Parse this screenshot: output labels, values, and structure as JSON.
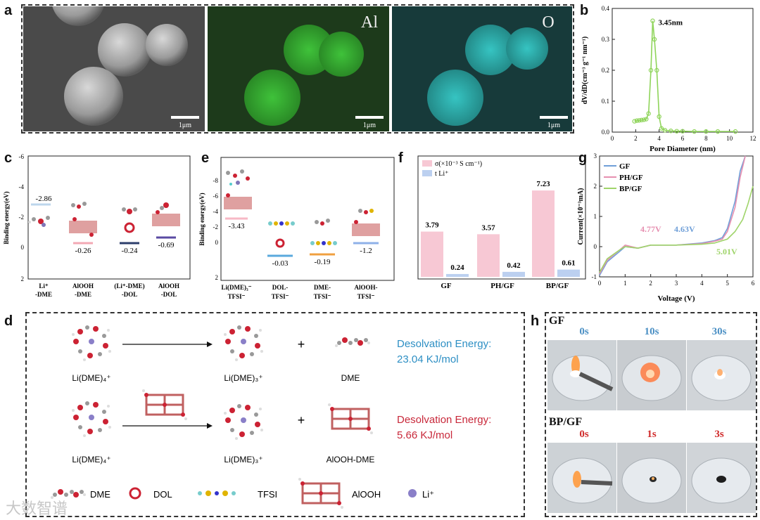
{
  "panels": {
    "a": {
      "label": "a",
      "map1": "Al",
      "map2": "O",
      "scalebar": "1μm",
      "map1_color": "#31a62c",
      "map2_color": "#2aa8a6"
    },
    "b": {
      "label": "b",
      "ylabel": "dV/dD(cm⁻³ g⁻¹ nm⁻¹)",
      "xlabel": "Pore Diameter (nm)",
      "annotation": "3.45nm",
      "line_color": "#8fd45a"
    },
    "c": {
      "label": "c",
      "ylabel": "Binding energy(eV)",
      "ticks": [
        "-6",
        "-4",
        "-2",
        "0",
        "2"
      ],
      "values": [
        "-2.86",
        "-0.26",
        "-0.24",
        "-0.69"
      ],
      "categories": [
        [
          "Li⁺",
          "-DME"
        ],
        [
          "AlOOH",
          "-DME"
        ],
        [
          "(Li⁺-DME)",
          "-DOL"
        ],
        [
          "AlOOH",
          "-DOL"
        ]
      ],
      "level_colors": [
        "#bcd6ec",
        "#f3a8b4",
        "#2c3e6b",
        "#5a4aa2"
      ]
    },
    "e": {
      "label": "e",
      "ylabel": "Binding energy(eV)",
      "ticks": [
        "-8",
        "-6",
        "-4",
        "-2",
        "0",
        "2"
      ],
      "values": [
        "-3.43",
        "-0.03",
        "-0.19",
        "-1.2"
      ],
      "categories": [
        [
          "Li(DME)₃⁻",
          "TFSI⁻"
        ],
        [
          "DOL-",
          "TFSI⁻"
        ],
        [
          "DME-",
          "TFSI⁻"
        ],
        [
          "AlOOH-",
          "TFSI⁻"
        ]
      ],
      "level_colors": [
        "#f7b8c6",
        "#5aa9dd",
        "#f0a040",
        "#8fb0e8"
      ]
    },
    "f": {
      "label": "f",
      "legend": [
        "σ(×10⁻³ S cm⁻¹)",
        "t Li⁺"
      ],
      "colors": [
        "#f7c8d4",
        "#bcd0f0"
      ]
    },
    "g": {
      "label": "g",
      "ylabel": "Current(×10⁻³mA)",
      "xlabel": "Voltage (V)",
      "series_colors": [
        "#6f9fd8",
        "#e68fb0",
        "#9fd46a"
      ],
      "annotations": [
        "4.63V",
        "4.77V",
        "5.01V"
      ]
    },
    "d": {
      "label": "d",
      "row1": {
        "left": "Li(DME)₄⁺",
        "mid": "Li(DME)₃⁺",
        "plus": "+",
        "right": "DME",
        "energy_title": "Desolvation Energy:",
        "energy_value": "23.04 KJ/mol",
        "color": "#2d8fc4"
      },
      "row2": {
        "left": "Li(DME)₄⁺",
        "mid": "Li(DME)₃⁺",
        "plus": "+",
        "right": "AlOOH-DME",
        "energy_title": "Desolvation Energy:",
        "energy_value": "5.66 KJ/mol",
        "color": "#c8283a"
      },
      "legend": [
        "DME",
        "DOL",
        "TFSI",
        "AlOOH",
        "Li⁺"
      ]
    },
    "h": {
      "label": "h",
      "group1": "GF",
      "times1": [
        "0s",
        "10s",
        "30s"
      ],
      "group2": "BP/GF",
      "times2": [
        "0s",
        "1s",
        "3s"
      ],
      "time_color1": "#4a8fc4",
      "time_color2": "#d02a2a"
    }
  },
  "watermark": "大数智谱",
  "chart_data": [
    {
      "type": "line",
      "panel": "b",
      "title": "",
      "xlabel": "Pore Diameter (nm)",
      "ylabel": "dV/dD(cm⁻³ g⁻¹ nm⁻¹)",
      "xlim": [
        0,
        12
      ],
      "ylim": [
        0,
        0.4
      ],
      "xticks": [
        "0",
        "2",
        "4",
        "6",
        "8",
        "10",
        "12"
      ],
      "yticks": [
        "0.0",
        "0.1",
        "0.2",
        "0.3",
        "0.4"
      ],
      "x": [
        1.9,
        2.1,
        2.3,
        2.5,
        2.7,
        2.9,
        3.1,
        3.3,
        3.45,
        3.6,
        3.8,
        4.0,
        4.2,
        4.5,
        5.0,
        5.5,
        6.0,
        7.0,
        8.0,
        9.0,
        10.5
      ],
      "y": [
        0.035,
        0.037,
        0.038,
        0.039,
        0.04,
        0.042,
        0.06,
        0.2,
        0.36,
        0.3,
        0.2,
        0.05,
        0.012,
        0.006,
        0.004,
        0.003,
        0.003,
        0.002,
        0.002,
        0.002,
        0.002
      ]
    },
    {
      "type": "bar",
      "panel": "f",
      "categories": [
        "GF",
        "PH/GF",
        "BP/GF"
      ],
      "series": [
        {
          "name": "σ(×10⁻³ S cm⁻¹)",
          "values": [
            3.79,
            3.57,
            7.23
          ]
        },
        {
          "name": "t Li⁺",
          "values": [
            0.24,
            0.42,
            0.61
          ]
        }
      ],
      "data_labels": [
        [
          "3.79",
          "3.57",
          "7.23"
        ],
        [
          "0.24",
          "0.42",
          "0.61"
        ]
      ]
    },
    {
      "type": "line",
      "panel": "g",
      "xlabel": "Voltage (V)",
      "ylabel": "Current(×10⁻³mA)",
      "xlim": [
        0,
        6
      ],
      "ylim": [
        -1,
        3
      ],
      "xticks": [
        "0",
        "1",
        "2",
        "3",
        "4",
        "5",
        "6"
      ],
      "yticks": [
        "-1",
        "0",
        "1",
        "2",
        "3"
      ],
      "series": [
        {
          "name": "GF",
          "x": [
            0,
            0.3,
            0.8,
            1.0,
            1.5,
            2.0,
            3.0,
            4.0,
            4.5,
            4.8,
            5.0,
            5.3,
            5.5,
            5.7
          ],
          "y": [
            -0.95,
            -0.5,
            -0.15,
            0.0,
            -0.05,
            0.05,
            0.05,
            0.12,
            0.2,
            0.3,
            0.6,
            1.5,
            2.5,
            3.2
          ]
        },
        {
          "name": "PH/GF",
          "x": [
            0,
            0.3,
            0.8,
            1.0,
            1.5,
            2.0,
            3.0,
            4.0,
            4.5,
            4.8,
            5.0,
            5.3,
            5.5,
            5.7
          ],
          "y": [
            -0.9,
            -0.45,
            -0.1,
            0.05,
            -0.05,
            0.05,
            0.05,
            0.1,
            0.18,
            0.25,
            0.5,
            1.3,
            2.3,
            3.1
          ]
        },
        {
          "name": "BP/GF",
          "x": [
            0,
            0.3,
            0.8,
            1.0,
            1.5,
            2.0,
            3.0,
            4.0,
            4.5,
            5.0,
            5.3,
            5.6,
            5.8,
            6.0
          ],
          "y": [
            -0.85,
            -0.4,
            -0.1,
            0.0,
            -0.05,
            0.05,
            0.05,
            0.08,
            0.12,
            0.25,
            0.5,
            0.9,
            1.4,
            2.0
          ]
        }
      ]
    }
  ]
}
